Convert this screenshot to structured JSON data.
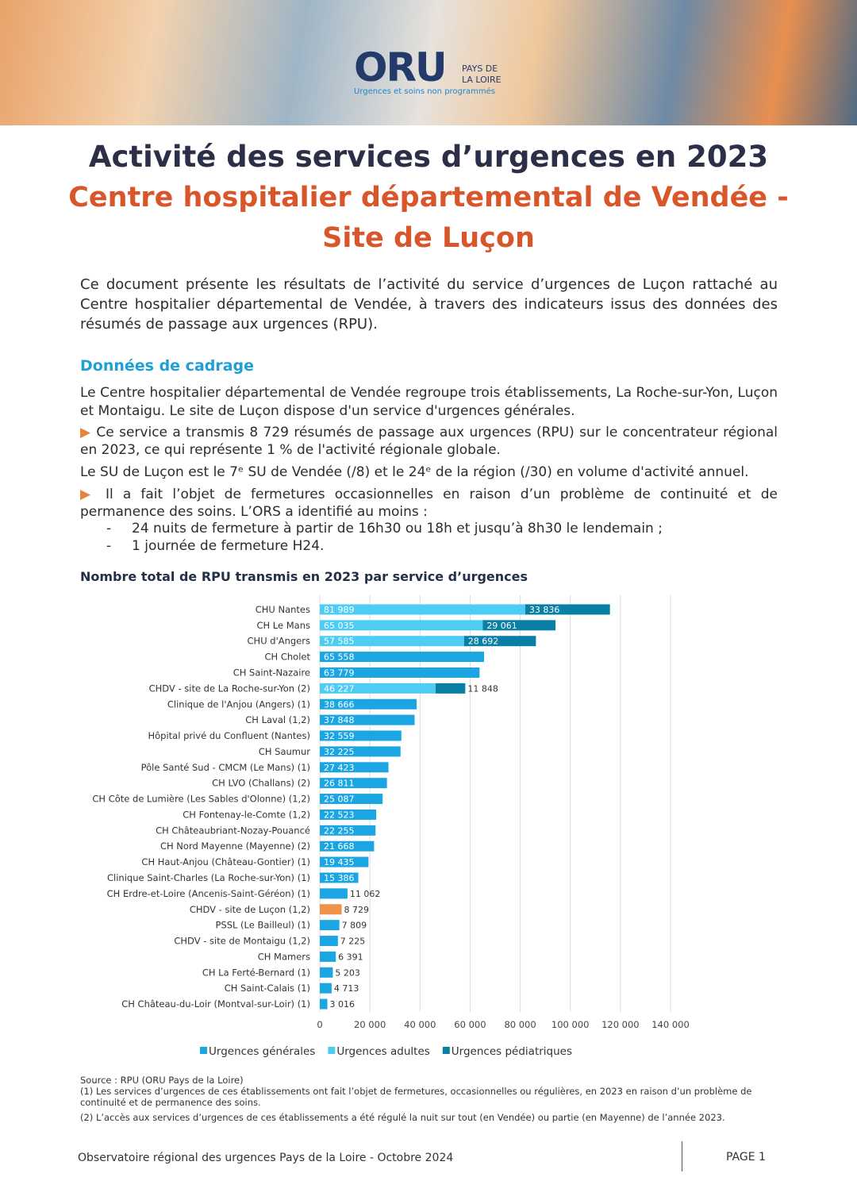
{
  "header": {
    "logo": "ORU",
    "logo_region_1": "PAYS DE",
    "logo_region_2": "LA LOIRE",
    "logo_tagline": "Urgences et soins non programmés"
  },
  "title": "Activité des services d’urgences en 2023",
  "subtitle_1": "Centre hospitalier départemental de Vendée -",
  "subtitle_2": "Site de Luçon",
  "intro": "Ce document présente les résultats de l’activité du service d’urgences de Luçon rattaché au Centre hospitalier départemental de Vendée, à travers des indicateurs issus des données des résumés de passage aux urgences (RPU).",
  "section": {
    "heading": "Données de cadrage",
    "p1": "Le Centre hospitalier départemental de Vendée regroupe trois établissements, La Roche-sur-Yon, Luçon et Montaigu. Le site de Luçon dispose d'un service d'urgences générales.",
    "p2": "Ce service a transmis 8 729 résumés de passage aux urgences (RPU) sur le concentrateur régional en 2023, ce qui représente 1 % de l'activité régionale globale.",
    "p3": "Le SU de Luçon est le 7ᵉ SU de Vendée (/8) et le 24ᵉ de la région (/30) en volume d'activité annuel.",
    "p4": "Il a fait l’objet de fermetures occasionnelles en raison d’un problème de continuité et de permanence des soins. L’ORS a identifié au moins :",
    "list": [
      "24 nuits de fermeture à partir de 16h30 ou 18h et jusqu’à 8h30 le lendemain ;",
      "1 journée de fermeture H24."
    ]
  },
  "chart_data": {
    "type": "stacked-hbar",
    "title": "Nombre total de RPU transmis en 2023 par service d’urgences",
    "categories": [
      "CHU Nantes",
      "CH Le Mans",
      "CHU d'Angers",
      "CH Cholet",
      "CH Saint-Nazaire",
      "CHDV - site de La Roche-sur-Yon (2)",
      "Clinique de l'Anjou (Angers) (1)",
      "CH Laval (1,2)",
      "Hôpital privé du Confluent (Nantes)",
      "CH Saumur",
      "Pôle Santé Sud - CMCM (Le Mans) (1)",
      "CH LVO (Challans) (2)",
      "CH Côte de Lumière (Les Sables d'Olonne) (1,2)",
      "CH Fontenay-le-Comte (1,2)",
      "CH Châteaubriant-Nozay-Pouancé",
      "CH Nord Mayenne (Mayenne) (2)",
      "CH Haut-Anjou (Château-Gontier) (1)",
      "Clinique Saint-Charles (La Roche-sur-Yon) (1)",
      "CH Erdre-et-Loire (Ancenis-Saint-Géréon) (1)",
      "CHDV - site de Luçon (1,2)",
      "PSSL (Le Bailleul) (1)",
      "CHDV - site de Montaigu (1,2)",
      "CH Mamers",
      "CH La Ferté-Bernard (1)",
      "CH Saint-Calais (1)",
      "CH Château-du-Loir (Montval-sur-Loir) (1)"
    ],
    "series": [
      {
        "name": "Urgences générales",
        "color": "#1ba6e3",
        "values": [
          null,
          null,
          null,
          65558,
          63779,
          null,
          38666,
          37848,
          32559,
          32225,
          27423,
          26811,
          25087,
          22523,
          22255,
          21668,
          19435,
          15386,
          11062,
          8729,
          7809,
          7225,
          6391,
          5203,
          4713,
          3016
        ],
        "value_labels": [
          null,
          null,
          null,
          "65 558",
          "63 779",
          null,
          "38 666",
          "37 848",
          "32 559",
          "32 225",
          "27 423",
          "26 811",
          "25 087",
          "22 523",
          "22 255",
          "21 668",
          "19 435",
          "15 386",
          "11 062",
          "8 729",
          "7 809",
          "7 225",
          "6 391",
          "5 203",
          "4 713",
          "3 016"
        ]
      },
      {
        "name": "Urgences adultes",
        "color": "#4dcdf3",
        "values": [
          81989,
          65035,
          57585,
          null,
          null,
          46227,
          null,
          null,
          null,
          null,
          null,
          null,
          null,
          null,
          null,
          null,
          null,
          null,
          null,
          null,
          null,
          null,
          null,
          null,
          null,
          null
        ],
        "value_labels": [
          "81 989",
          "65 035",
          "57 585",
          null,
          null,
          "46 227",
          null,
          null,
          null,
          null,
          null,
          null,
          null,
          null,
          null,
          null,
          null,
          null,
          null,
          null,
          null,
          null,
          null,
          null,
          null,
          null
        ]
      },
      {
        "name": "Urgences pédiatriques",
        "color": "#0a7fa6",
        "values": [
          33836,
          29061,
          28692,
          null,
          null,
          11848,
          null,
          null,
          null,
          null,
          null,
          null,
          null,
          null,
          null,
          null,
          null,
          null,
          null,
          null,
          null,
          null,
          null,
          null,
          null,
          null
        ],
        "value_labels": [
          "33 836",
          "29 061",
          "28 692",
          null,
          null,
          "11 848",
          null,
          null,
          null,
          null,
          null,
          null,
          null,
          null,
          null,
          null,
          null,
          null,
          null,
          null,
          null,
          null,
          null,
          null,
          null,
          null
        ]
      }
    ],
    "highlight_index": 19,
    "highlight_color": "#f2914a",
    "xlim": [
      0,
      140000
    ],
    "xticks": [
      0,
      {
        "value": 20000,
        "label": "20 000"
      },
      {
        "value": 40000,
        "label": "40 000"
      },
      {
        "value": 60000,
        "label": "60 000"
      },
      {
        "value": 80000,
        "label": "80 000"
      },
      {
        "value": 100000,
        "label": "100 000"
      },
      {
        "value": 120000,
        "label": "120 000"
      },
      {
        "value": 140000,
        "label": "140 000"
      }
    ],
    "grid": true,
    "legend": "bottom"
  },
  "notes": {
    "source": "Source : RPU (ORU Pays de la Loire)",
    "n1": "(1) Les services d’urgences de ces établissements ont fait l’objet de fermetures, occasionnelles ou régulières, en 2023 en raison d’un problème de continuité et de permanence des soins.",
    "n2": "(2) L’accès aux services d’urgences de ces établissements a été régulé la nuit sur tout (en Vendée) ou partie (en Mayenne) de l’année 2023."
  },
  "footer": {
    "left": "Observatoire régional des urgences Pays de la Loire - Octobre 2024",
    "right": "PAGE 1"
  }
}
